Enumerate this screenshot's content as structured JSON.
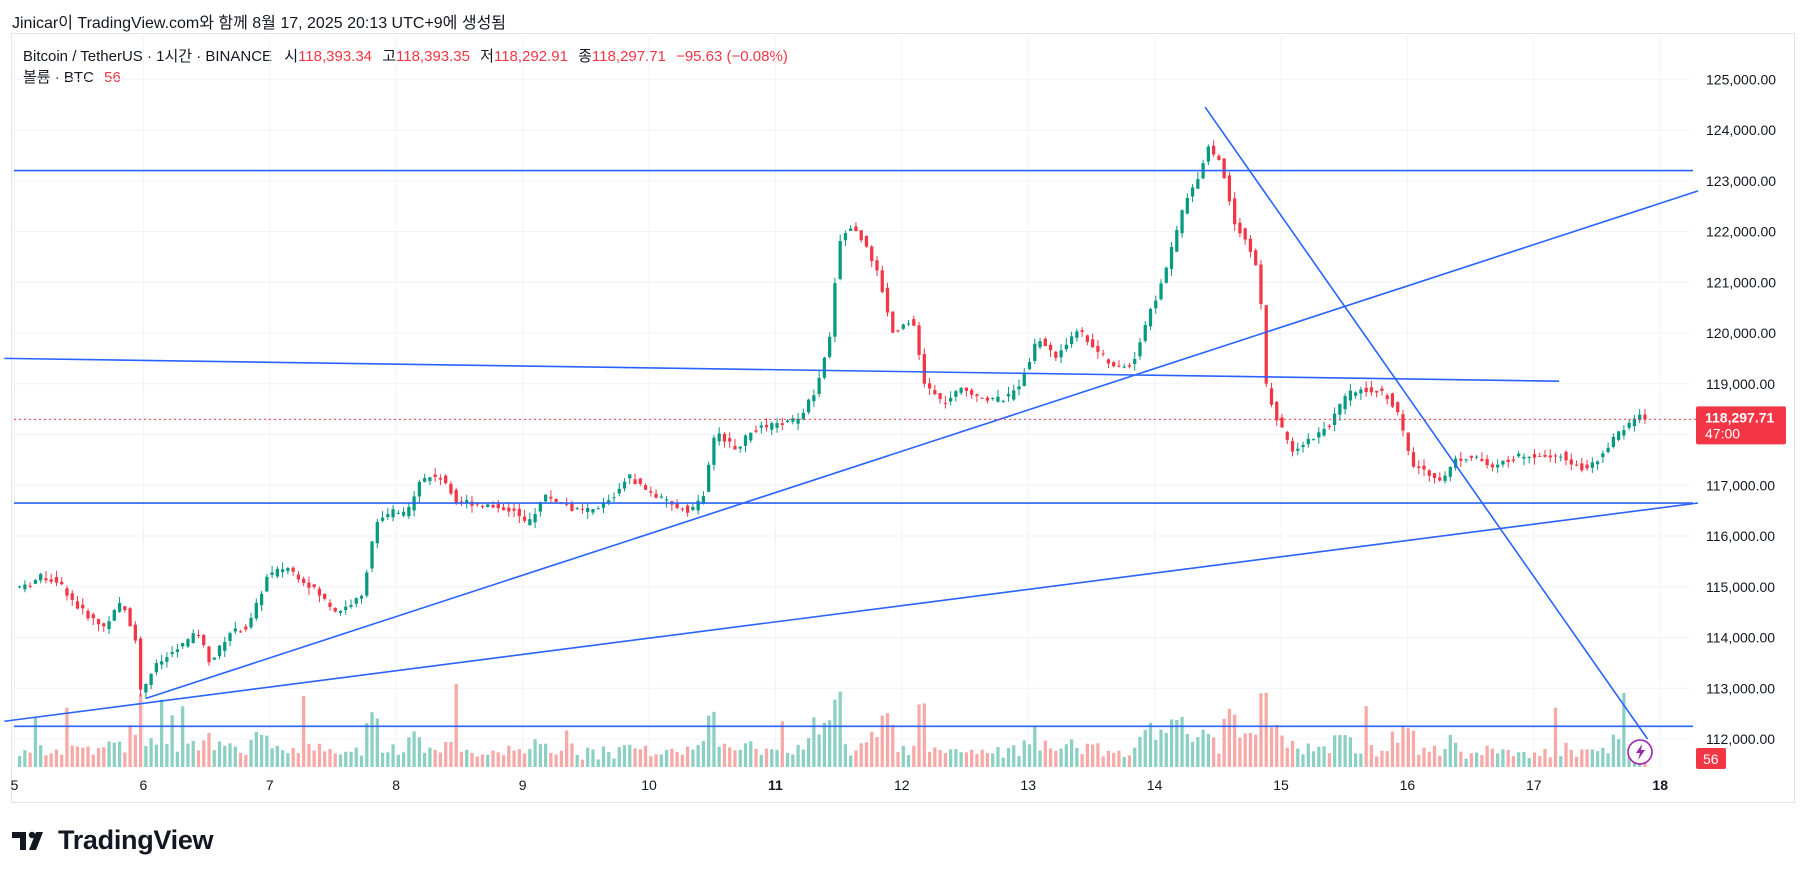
{
  "caption": "Jinicar이 TradingView.com와 함께 8월 17, 2025 20:13 UTC+9에 생성됨",
  "legend": {
    "symbol": "Bitcoin / TetherUS · 1시간 · BINANCE",
    "open_label": "시",
    "open": "118,393.34",
    "high_label": "고",
    "high": "118,393.35",
    "low_label": "저",
    "low": "118,292.91",
    "close_label": "종",
    "close": "118,297.71",
    "change": "−95.63 (−0.08%)",
    "volume_label": "볼륨 · BTC",
    "volume_value": "56"
  },
  "price_tag": {
    "price": "118,297.71",
    "countdown": "47:00"
  },
  "volume_tag": "56",
  "logo_text": "TradingView",
  "colors": {
    "up": "#089981",
    "down": "#f23645",
    "line": "#2962ff",
    "up_vol": "#8ccfc3",
    "down_vol": "#f7a9a7"
  },
  "chart_data": {
    "type": "candlestick",
    "ylim": [
      111500,
      125500
    ],
    "y_ticks": [
      "112,000.00",
      "113,000.00",
      "114,000.00",
      "115,000.00",
      "116,000.00",
      "117,000.00",
      "118,000.00",
      "119,000.00",
      "120,000.00",
      "121,000.00",
      "122,000.00",
      "123,000.00",
      "124,000.00",
      "125,000.00"
    ],
    "y_tick_values": [
      112000,
      113000,
      114000,
      115000,
      116000,
      117000,
      118000,
      119000,
      120000,
      121000,
      122000,
      123000,
      124000,
      125000
    ],
    "x_ticks": [
      {
        "label": "5",
        "t": -0.02
      },
      {
        "label": "6",
        "t": 1
      },
      {
        "label": "7",
        "t": 2
      },
      {
        "label": "8",
        "t": 3
      },
      {
        "label": "9",
        "t": 4
      },
      {
        "label": "10",
        "t": 5
      },
      {
        "label": "11",
        "t": 6
      },
      {
        "label": "12",
        "t": 7
      },
      {
        "label": "13",
        "t": 8
      },
      {
        "label": "14",
        "t": 9
      },
      {
        "label": "15",
        "t": 10
      },
      {
        "label": "16",
        "t": 11
      },
      {
        "label": "17",
        "t": 12
      },
      {
        "label": "18",
        "t": 13
      }
    ],
    "bold_x_ticks": [
      "11",
      "18"
    ],
    "last_price": 118297.71,
    "price_path": [
      {
        "t": 0.0,
        "p": 115000
      },
      {
        "t": 0.1,
        "p": 115000
      },
      {
        "t": 0.2,
        "p": 115200
      },
      {
        "t": 0.35,
        "p": 115100
      },
      {
        "t": 0.5,
        "p": 114600
      },
      {
        "t": 0.7,
        "p": 114200
      },
      {
        "t": 0.85,
        "p": 114700
      },
      {
        "t": 0.97,
        "p": 113900
      },
      {
        "t": 1.0,
        "p": 112900
      },
      {
        "t": 1.1,
        "p": 113400
      },
      {
        "t": 1.3,
        "p": 113800
      },
      {
        "t": 1.45,
        "p": 114100
      },
      {
        "t": 1.55,
        "p": 113500
      },
      {
        "t": 1.7,
        "p": 114100
      },
      {
        "t": 1.85,
        "p": 114200
      },
      {
        "t": 2.0,
        "p": 115200
      },
      {
        "t": 2.15,
        "p": 115400
      },
      {
        "t": 2.35,
        "p": 115000
      },
      {
        "t": 2.55,
        "p": 114500
      },
      {
        "t": 2.75,
        "p": 114800
      },
      {
        "t": 2.85,
        "p": 116200
      },
      {
        "t": 3.0,
        "p": 116500
      },
      {
        "t": 3.1,
        "p": 116400
      },
      {
        "t": 3.2,
        "p": 117100
      },
      {
        "t": 3.35,
        "p": 117200
      },
      {
        "t": 3.5,
        "p": 116700
      },
      {
        "t": 3.75,
        "p": 116600
      },
      {
        "t": 3.95,
        "p": 116500
      },
      {
        "t": 4.05,
        "p": 116200
      },
      {
        "t": 4.2,
        "p": 116800
      },
      {
        "t": 4.45,
        "p": 116500
      },
      {
        "t": 4.6,
        "p": 116500
      },
      {
        "t": 4.75,
        "p": 116800
      },
      {
        "t": 4.85,
        "p": 117200
      },
      {
        "t": 5.0,
        "p": 116900
      },
      {
        "t": 5.2,
        "p": 116600
      },
      {
        "t": 5.35,
        "p": 116500
      },
      {
        "t": 5.45,
        "p": 116800
      },
      {
        "t": 5.55,
        "p": 118100
      },
      {
        "t": 5.7,
        "p": 117700
      },
      {
        "t": 5.85,
        "p": 118100
      },
      {
        "t": 6.05,
        "p": 118200
      },
      {
        "t": 6.2,
        "p": 118300
      },
      {
        "t": 6.35,
        "p": 118900
      },
      {
        "t": 6.45,
        "p": 119900
      },
      {
        "t": 6.52,
        "p": 121800
      },
      {
        "t": 6.62,
        "p": 122100
      },
      {
        "t": 6.75,
        "p": 121700
      },
      {
        "t": 6.85,
        "p": 121000
      },
      {
        "t": 6.95,
        "p": 120000
      },
      {
        "t": 7.1,
        "p": 120300
      },
      {
        "t": 7.2,
        "p": 119000
      },
      {
        "t": 7.35,
        "p": 118600
      },
      {
        "t": 7.5,
        "p": 118900
      },
      {
        "t": 7.7,
        "p": 118700
      },
      {
        "t": 7.85,
        "p": 118700
      },
      {
        "t": 7.95,
        "p": 119000
      },
      {
        "t": 8.1,
        "p": 119900
      },
      {
        "t": 8.25,
        "p": 119500
      },
      {
        "t": 8.4,
        "p": 120100
      },
      {
        "t": 8.55,
        "p": 119700
      },
      {
        "t": 8.7,
        "p": 119300
      },
      {
        "t": 8.85,
        "p": 119400
      },
      {
        "t": 8.95,
        "p": 120200
      },
      {
        "t": 9.05,
        "p": 120800
      },
      {
        "t": 9.15,
        "p": 121600
      },
      {
        "t": 9.25,
        "p": 122500
      },
      {
        "t": 9.35,
        "p": 123000
      },
      {
        "t": 9.45,
        "p": 123700
      },
      {
        "t": 9.55,
        "p": 123300
      },
      {
        "t": 9.65,
        "p": 122200
      },
      {
        "t": 9.75,
        "p": 121800
      },
      {
        "t": 9.85,
        "p": 121100
      },
      {
        "t": 9.9,
        "p": 119000
      },
      {
        "t": 9.97,
        "p": 118400
      },
      {
        "t": 10.1,
        "p": 117700
      },
      {
        "t": 10.25,
        "p": 117900
      },
      {
        "t": 10.4,
        "p": 118200
      },
      {
        "t": 10.55,
        "p": 118800
      },
      {
        "t": 10.7,
        "p": 118900
      },
      {
        "t": 10.85,
        "p": 118800
      },
      {
        "t": 10.95,
        "p": 118400
      },
      {
        "t": 11.05,
        "p": 117400
      },
      {
        "t": 11.15,
        "p": 117300
      },
      {
        "t": 11.3,
        "p": 117100
      },
      {
        "t": 11.4,
        "p": 117500
      },
      {
        "t": 11.55,
        "p": 117600
      },
      {
        "t": 11.7,
        "p": 117300
      },
      {
        "t": 11.8,
        "p": 117500
      },
      {
        "t": 11.95,
        "p": 117600
      },
      {
        "t": 12.1,
        "p": 117600
      },
      {
        "t": 12.25,
        "p": 117600
      },
      {
        "t": 12.35,
        "p": 117400
      },
      {
        "t": 12.45,
        "p": 117300
      },
      {
        "t": 12.55,
        "p": 117600
      },
      {
        "t": 12.68,
        "p": 118000
      },
      {
        "t": 12.8,
        "p": 118250
      },
      {
        "t": 12.85,
        "p": 118400
      },
      {
        "t": 12.9,
        "p": 118300
      }
    ],
    "horizontal_levels": [
      123200,
      116650,
      112250
    ],
    "trendlines": [
      {
        "t1": -0.1,
        "p1": 119500,
        "t2": 12.2,
        "p2": 119050
      },
      {
        "t1": -0.1,
        "p1": 112350,
        "t2": 13.3,
        "p2": 116650
      },
      {
        "t1": 1.02,
        "p1": 112800,
        "t2": 13.3,
        "p2": 122800
      },
      {
        "t1": 9.4,
        "p1": 124450,
        "t2": 12.9,
        "p2": 112000
      }
    ],
    "volume_max": 56
  }
}
